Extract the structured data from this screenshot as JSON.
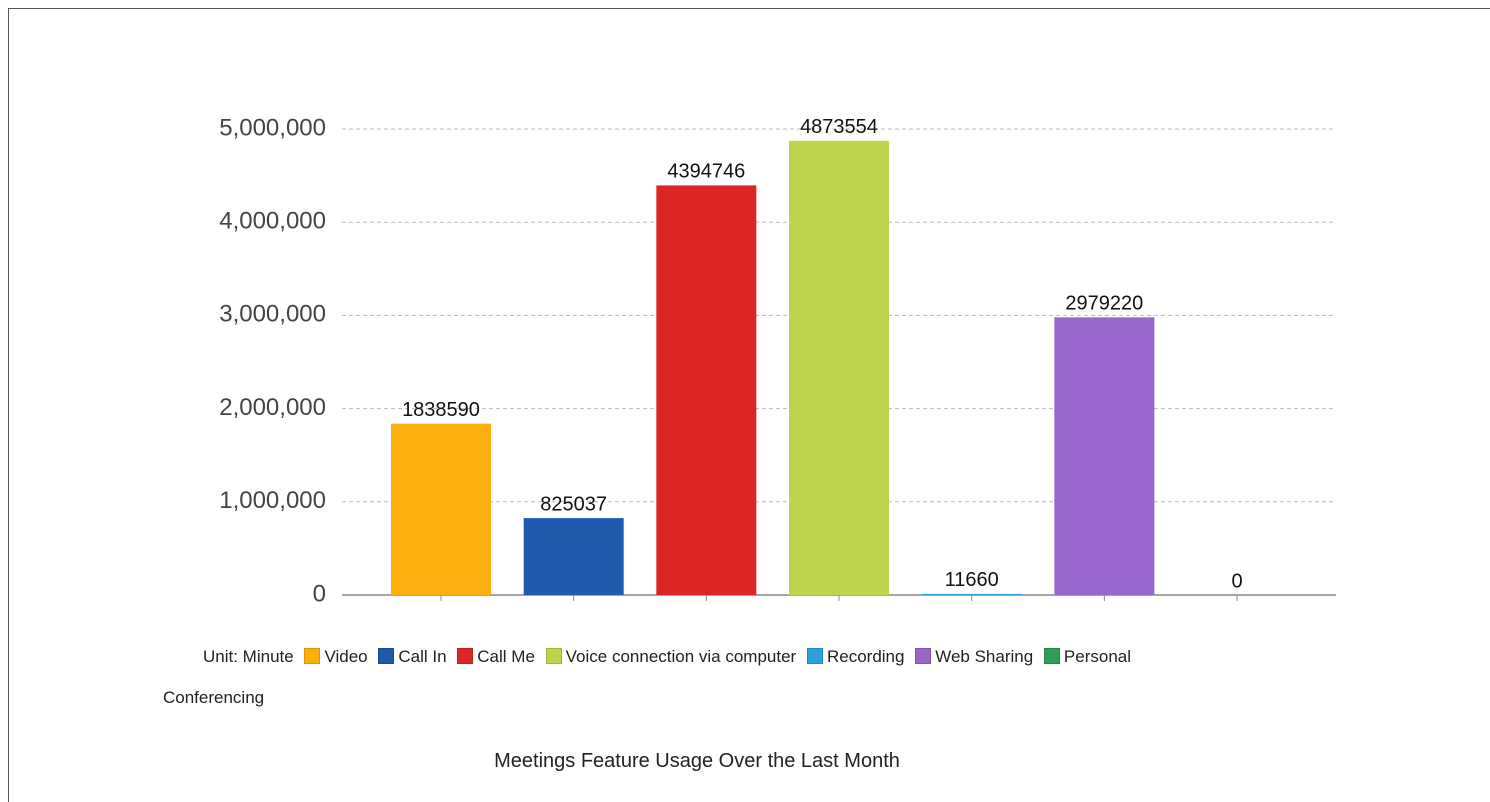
{
  "chart_data": {
    "type": "bar",
    "title": "Meetings Feature Usage Over the Last Month",
    "categories": [
      null,
      null,
      null,
      null,
      null,
      null,
      null
    ],
    "values": [
      1838590,
      825037,
      4394746,
      4873554,
      11660,
      2979220,
      0
    ],
    "colors": [
      "#fdb00d",
      "#1f5aad",
      "#dc2626",
      "#bfd44c",
      "#2aa3d9",
      "#9966cc",
      "#2e9e58"
    ],
    "legend": {
      "prefix": "Unit: Minute",
      "entries": [
        "Video",
        "Call In",
        "Call Me",
        "Voice connection via computer",
        "Recording",
        "Web Sharing",
        "Personal Conferencing"
      ]
    },
    "ylim": [
      0,
      5000000
    ],
    "yticks": [
      0,
      {
        "value": 1000000,
        "label": "1,000,000"
      },
      {
        "value": 2000000,
        "label": "2,000,000"
      },
      {
        "value": 3000000,
        "label": "3,000,000"
      },
      {
        "value": 4000000,
        "label": "4,000,000"
      },
      {
        "value": 5000000,
        "label": "5,000,000"
      }
    ],
    "grid": true
  }
}
